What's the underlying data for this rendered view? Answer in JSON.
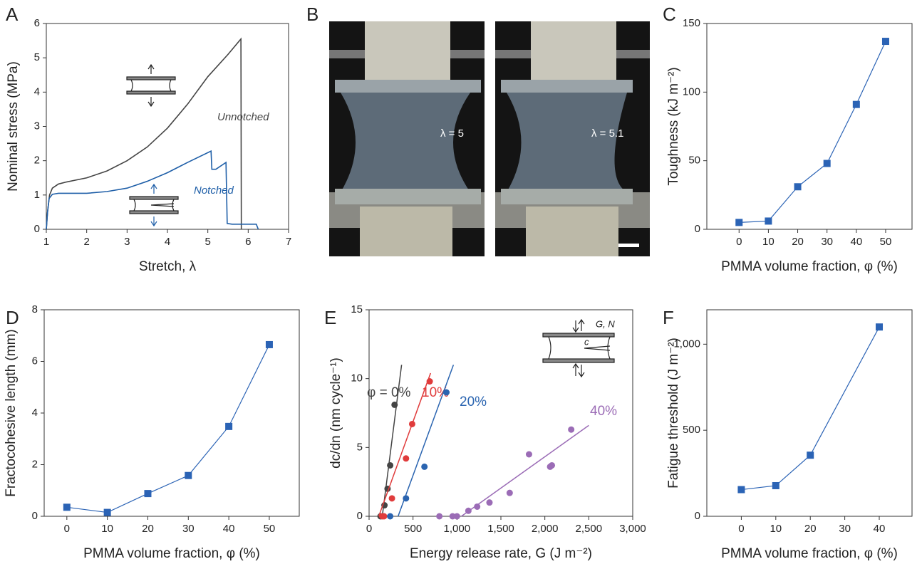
{
  "chart_data": [
    {
      "type": "line",
      "panel": "A",
      "xlabel": "Stretch, λ",
      "ylabel": "Nominal stress (MPa)",
      "xlim": [
        1,
        7
      ],
      "ylim": [
        0,
        6
      ],
      "xticks": [
        1,
        2,
        3,
        4,
        5,
        6,
        7
      ],
      "yticks": [
        0,
        1,
        2,
        3,
        4,
        5,
        6
      ],
      "series": [
        {
          "name": "Unnotched",
          "color": "#444444",
          "x": [
            1.0,
            1.03,
            1.08,
            1.15,
            1.3,
            1.5,
            2.0,
            2.5,
            3.0,
            3.5,
            4.0,
            4.5,
            5.0,
            5.5,
            5.82,
            5.83
          ],
          "values": [
            0,
            0.5,
            1.0,
            1.2,
            1.32,
            1.38,
            1.5,
            1.7,
            2.0,
            2.4,
            2.95,
            3.65,
            4.45,
            5.1,
            5.55,
            0
          ]
        },
        {
          "name": "Notched",
          "color": "#1f5fa8",
          "x": [
            1.0,
            1.03,
            1.07,
            1.15,
            1.3,
            2.0,
            2.5,
            3.0,
            3.5,
            4.0,
            4.5,
            5.08,
            5.1,
            5.2,
            5.45,
            5.48,
            5.6,
            6.0,
            6.2,
            6.25
          ],
          "values": [
            0,
            0.5,
            0.9,
            1.02,
            1.05,
            1.05,
            1.1,
            1.2,
            1.4,
            1.65,
            1.95,
            2.28,
            1.75,
            1.75,
            1.95,
            0.17,
            0.15,
            0.15,
            0.15,
            0
          ]
        }
      ]
    },
    {
      "type": "image",
      "panel": "B",
      "labels": [
        "λ = 5",
        "λ = 5.1"
      ]
    },
    {
      "type": "line",
      "panel": "C",
      "xlabel": "PMMA volume fraction, φ (%)",
      "ylabel": "Toughness (kJ m⁻²)",
      "xlim": [
        -11,
        59
      ],
      "ylim": [
        0,
        150
      ],
      "xticks": [
        0,
        10,
        20,
        30,
        40,
        50
      ],
      "yticks": [
        0,
        50,
        100,
        150
      ],
      "color": "#2b63b5",
      "x": [
        0,
        10,
        20,
        30,
        40,
        50
      ],
      "values": [
        5,
        6,
        31,
        48,
        91,
        137
      ]
    },
    {
      "type": "line",
      "panel": "D",
      "xlabel": "PMMA volume fraction, φ (%)",
      "ylabel": "Fractocohesive length (mm)",
      "xlim": [
        -5.6,
        57.4
      ],
      "ylim": [
        0,
        8
      ],
      "xticks": [
        0,
        10,
        20,
        30,
        40,
        50
      ],
      "yticks": [
        0,
        2,
        4,
        6,
        8
      ],
      "color": "#2b63b5",
      "x": [
        0,
        10,
        20,
        30,
        40,
        50
      ],
      "values": [
        0.35,
        0.15,
        0.88,
        1.58,
        3.48,
        6.65
      ]
    },
    {
      "type": "scatter",
      "panel": "E",
      "xlabel": "Energy release rate, G (J m⁻²)",
      "ylabel": "dc/dn (nm cycle⁻¹)",
      "xlim": [
        0,
        3000
      ],
      "ylim": [
        0,
        15
      ],
      "xticks": [
        0,
        500,
        {
          "value": 1000,
          "label": "1,000"
        },
        {
          "value": 1500,
          "label": "1,500"
        },
        {
          "value": 2000,
          "label": "2,000"
        },
        {
          "value": 2500,
          "label": "2,500"
        },
        {
          "value": 3000,
          "label": "3,000"
        }
      ],
      "yticks": [
        0,
        5,
        10,
        15
      ],
      "inset_labels": [
        "G, N",
        "c"
      ],
      "series": [
        {
          "name": "φ = 0%",
          "color": "#444444",
          "x": [
            130,
            175,
            210,
            240,
            290
          ],
          "values": [
            0,
            0.8,
            2,
            3.7,
            8.1
          ],
          "fit": {
            "x": [
              150,
              370
            ],
            "y": [
              0,
              11
            ]
          }
        },
        {
          "name": "10%",
          "color": "#e03c3c",
          "x": [
            150,
            170,
            260,
            420,
            490,
            690
          ],
          "values": [
            0,
            0,
            1.3,
            4.2,
            6.7,
            9.8
          ],
          "fit": {
            "x": [
              110,
              700
            ],
            "y": [
              0,
              10.4
            ]
          }
        },
        {
          "name": "20%",
          "color": "#2a64b0",
          "x": [
            240,
            420,
            630,
            880
          ],
          "values": [
            0,
            1.3,
            3.6,
            9
          ],
          "fit": {
            "x": [
              330,
              960
            ],
            "y": [
              0,
              11
            ]
          }
        },
        {
          "name": "40%",
          "color": "#9b6cb6",
          "x": [
            800,
            950,
            1000,
            1130,
            1230,
            1370,
            1600,
            1820,
            2060,
            2080,
            2300
          ],
          "values": [
            0,
            0,
            0,
            0.4,
            0.7,
            1.0,
            1.7,
            4.5,
            3.6,
            3.7,
            6.3
          ],
          "fit": {
            "x": [
              1050,
              2500
            ],
            "y": [
              0,
              6.6
            ]
          }
        }
      ]
    },
    {
      "type": "line",
      "panel": "F",
      "xlabel": "PMMA volume fraction, φ (%)",
      "ylabel": "Fatigue threshold (J m⁻²)",
      "xlim": [
        -10,
        49.5
      ],
      "ylim": [
        0,
        1200
      ],
      "xticks": [
        0,
        10,
        20,
        30,
        40
      ],
      "yticks": [
        0,
        500,
        {
          "value": 1000,
          "label": "1,000"
        }
      ],
      "color": "#2b63b5",
      "x": [
        0,
        10,
        20,
        40
      ],
      "values": [
        155,
        178,
        355,
        1100
      ]
    }
  ]
}
